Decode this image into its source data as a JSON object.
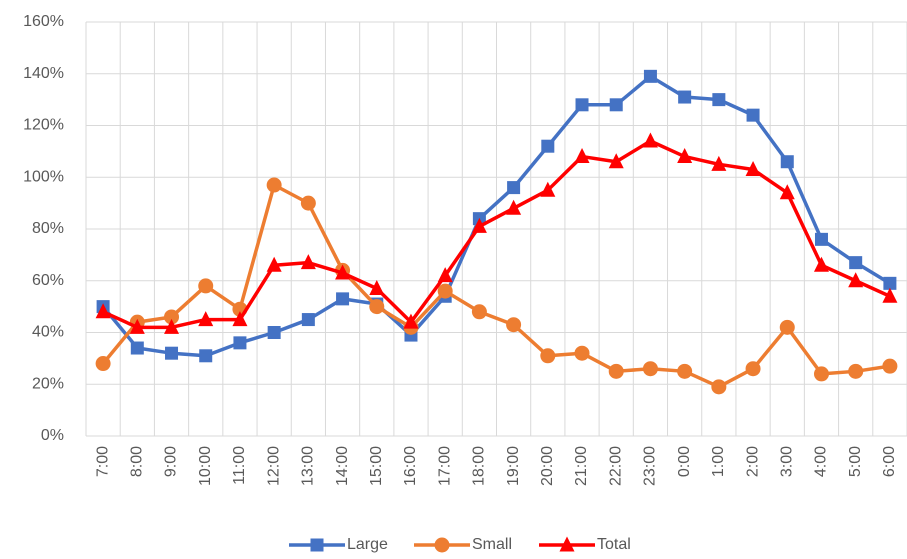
{
  "chart_data": {
    "type": "line",
    "categories": [
      "7:00",
      "8:00",
      "9:00",
      "10:00",
      "11:00",
      "12:00",
      "13:00",
      "14:00",
      "15:00",
      "16:00",
      "17:00",
      "18:00",
      "19:00",
      "20:00",
      "21:00",
      "22:00",
      "23:00",
      "0:00",
      "1:00",
      "2:00",
      "3:00",
      "4:00",
      "5:00",
      "6:00"
    ],
    "series": [
      {
        "name": "Large",
        "color": "#4472c4",
        "marker": "square",
        "values": [
          50,
          34,
          32,
          31,
          36,
          40,
          45,
          53,
          51,
          39,
          54,
          84,
          96,
          112,
          128,
          128,
          139,
          131,
          130,
          124,
          106,
          76,
          67,
          59
        ]
      },
      {
        "name": "Small",
        "color": "#ed7d31",
        "marker": "circle",
        "values": [
          28,
          44,
          46,
          58,
          49,
          97,
          90,
          64,
          50,
          42,
          56,
          48,
          43,
          31,
          32,
          25,
          26,
          25,
          19,
          26,
          42,
          24,
          25,
          27
        ]
      },
      {
        "name": "Total",
        "color": "#ff0000",
        "marker": "triangle",
        "values": [
          48,
          42,
          42,
          45,
          45,
          66,
          67,
          63,
          57,
          44,
          62,
          81,
          88,
          95,
          108,
          106,
          114,
          108,
          105,
          103,
          94,
          66,
          60,
          54
        ]
      }
    ],
    "ylim": [
      0,
      160
    ],
    "yticks": [
      {
        "value": 0,
        "label": "0%"
      },
      {
        "value": 20,
        "label": "20%"
      },
      {
        "value": 40,
        "label": "40%"
      },
      {
        "value": 60,
        "label": "60%"
      },
      {
        "value": 80,
        "label": "80%"
      },
      {
        "value": 100,
        "label": "100%"
      },
      {
        "value": 120,
        "label": "120%"
      },
      {
        "value": 140,
        "label": "140%"
      },
      {
        "value": 160,
        "label": "160%"
      }
    ],
    "grid": true,
    "legend": "bottom"
  }
}
